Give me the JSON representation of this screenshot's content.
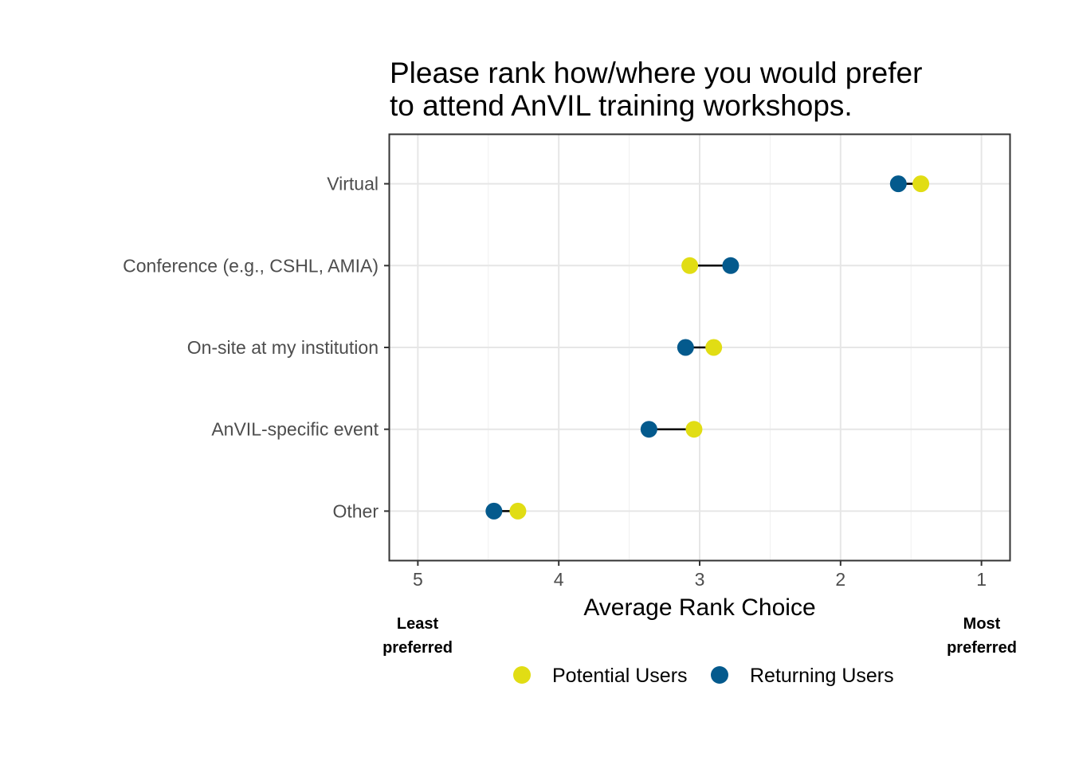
{
  "chart_data": {
    "type": "dumbbell",
    "title_lines": [
      "Please rank how/where you would prefer",
      "to attend AnVIL training workshops."
    ],
    "xlabel": "Average Rank Choice",
    "xlim": [
      5.2,
      0.8
    ],
    "x_reversed": true,
    "xticks": [
      5,
      4,
      3,
      2,
      1
    ],
    "grid": true,
    "categories": [
      "Virtual",
      "Conference (e.g., CSHL, AMIA)",
      "On-site at my institution",
      "AnVIL-specific event",
      "Other"
    ],
    "series": [
      {
        "name": "Potential Users",
        "color": "#e1dd14",
        "values": [
          1.43,
          3.07,
          2.9,
          3.04,
          4.29
        ]
      },
      {
        "name": "Returning Users",
        "color": "#045a8d",
        "values": [
          1.59,
          2.78,
          3.1,
          3.36,
          4.46
        ]
      }
    ],
    "annotations": {
      "least": [
        "Least",
        "preferred"
      ],
      "most": [
        "Most",
        "preferred"
      ]
    },
    "legend_position": "bottom"
  }
}
